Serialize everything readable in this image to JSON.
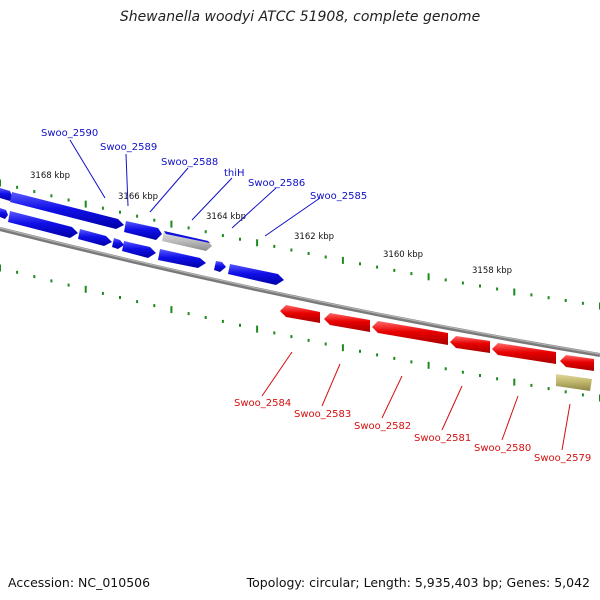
{
  "title": "Shewanella woodyi ATCC 51908, complete genome",
  "accession": "Accession: NC_010506",
  "topology": "Topology: circular; Length: 5,935,403 bp; Genes: 5,042",
  "scale_labels": [
    "3168 kbp",
    "3166 kbp",
    "3164 kbp",
    "3162 kbp",
    "3160 kbp",
    "3158 kbp"
  ],
  "forward_genes": [
    "Swoo_2590",
    "Swoo_2589",
    "Swoo_2588",
    "thiH",
    "Swoo_2586",
    "Swoo_2585"
  ],
  "reverse_genes": [
    "Swoo_2584",
    "Swoo_2583",
    "Swoo_2582",
    "Swoo_2581",
    "Swoo_2580",
    "Swoo_2579"
  ],
  "colors": {
    "forward": "#1010e0",
    "forward_label": "#1010c8",
    "reverse": "#e00000",
    "reverse_label": "#d41010",
    "pseudo_gray": "#b8b8b8",
    "other_khaki": "#bdb46a",
    "tick": "#1c8a1c",
    "backbone": "#8a8a8a"
  }
}
